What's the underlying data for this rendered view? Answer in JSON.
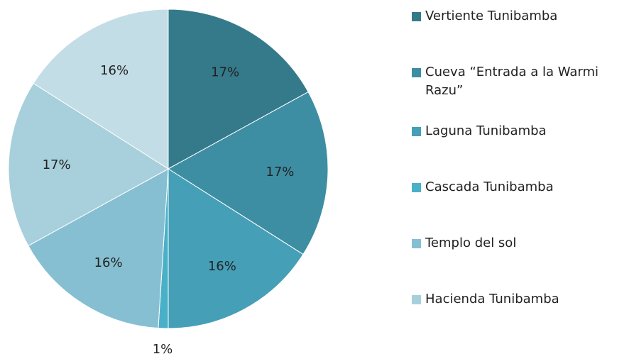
{
  "chart_data": {
    "type": "pie",
    "categories": [
      "Vertiente Tunibamba",
      "Cueva “Entrada a la Warmi Razu”",
      "Laguna Tunibamba",
      "Cascada Tunibamba",
      "Templo del sol",
      "Hacienda Tunibamba",
      null
    ],
    "values": [
      17,
      17,
      16,
      1,
      16,
      17,
      16
    ],
    "value_labels": [
      "17%",
      "17%",
      "16%",
      "1%",
      "16%",
      "17%",
      "16%"
    ],
    "colors": [
      "#357a8a",
      "#3d8ea3",
      "#459fb6",
      "#4ab0c8",
      "#86bfd1",
      "#a8cfdc",
      "#c3dde6"
    ],
    "legend": "right"
  }
}
